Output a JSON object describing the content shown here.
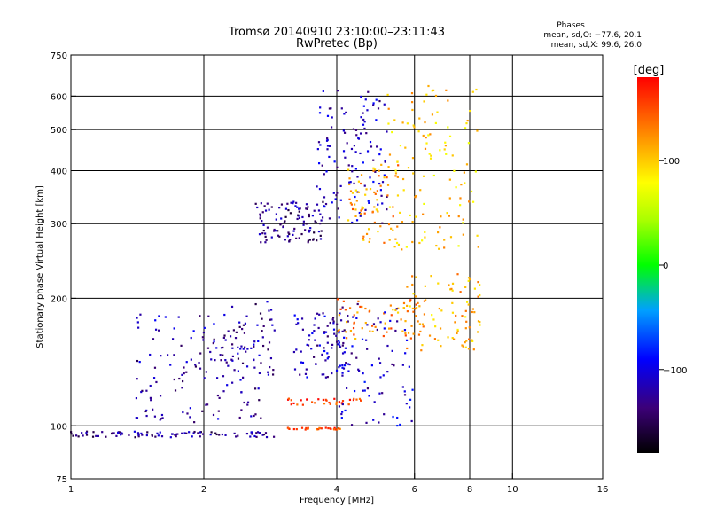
{
  "chart_data": {
    "type": "scatter",
    "title": "Tromsø 20140910 23:10:00–23:11:43",
    "subtitle": "RwPretec (Bp)",
    "phases_box": {
      "heading": "Phases",
      "line_o": "mean, sd,O: −77.6, 20.1",
      "line_x": "mean, sd,X: 99.6, 26.0"
    },
    "xlabel": "Frequency [MHz]",
    "ylabel": "Stationary phase Virtual Height [km]",
    "x_scale": "log",
    "y_scale": "log",
    "xlim": [
      1,
      16
    ],
    "ylim": [
      75,
      750
    ],
    "x_ticks": [
      1,
      2,
      4,
      6,
      8,
      10,
      16
    ],
    "x_tick_labels": [
      "1",
      "2",
      "4",
      "6",
      "8",
      "10",
      "16"
    ],
    "y_ticks": [
      75,
      100,
      200,
      300,
      400,
      500,
      600,
      750
    ],
    "y_tick_labels": [
      "75",
      "100",
      "200",
      "300",
      "400",
      "500",
      "600",
      "750"
    ],
    "grid_x": [
      2,
      4,
      6,
      8,
      10
    ],
    "grid_y": [
      100,
      200,
      300,
      400,
      500,
      600
    ],
    "grid": true,
    "colorbar": {
      "label": "[deg]",
      "range": [
        -180,
        180
      ],
      "ticks": [
        100,
        0,
        -100
      ],
      "tick_labels": [
        "100",
        "0",
        "−100"
      ]
    },
    "traces": [
      {
        "f0": 1.0,
        "f1": 2.9,
        "h0": 94,
        "h1": 97,
        "phase": -130,
        "n": 90
      },
      {
        "f0": 3.0,
        "f1": 4.1,
        "h0": 98,
        "h1": 99,
        "phase": 150,
        "n": 30
      },
      {
        "f0": 3.1,
        "f1": 4.6,
        "h0": 112,
        "h1": 116,
        "phase": 160,
        "n": 35
      },
      {
        "f0": 1.4,
        "f1": 2.7,
        "h0": 102,
        "h1": 185,
        "phase": -120,
        "n": 150
      },
      {
        "f0": 2.3,
        "f1": 2.9,
        "h0": 130,
        "h1": 200,
        "phase": -125,
        "n": 40
      },
      {
        "f0": 3.2,
        "f1": 4.3,
        "h0": 130,
        "h1": 185,
        "phase": -115,
        "n": 90
      },
      {
        "f0": 4.0,
        "f1": 6.2,
        "h0": 160,
        "h1": 200,
        "phase": 130,
        "n": 60
      },
      {
        "f0": 5.5,
        "f1": 8.5,
        "h0": 150,
        "h1": 230,
        "phase": 110,
        "n": 90
      },
      {
        "f0": 2.6,
        "f1": 3.8,
        "h0": 270,
        "h1": 340,
        "phase": -130,
        "n": 110
      },
      {
        "f0": 3.6,
        "f1": 5.2,
        "h0": 300,
        "h1": 620,
        "phase": -115,
        "n": 120
      },
      {
        "f0": 4.2,
        "f1": 5.6,
        "h0": 270,
        "h1": 420,
        "phase": 120,
        "n": 70
      },
      {
        "f0": 5.2,
        "f1": 8.4,
        "h0": 260,
        "h1": 640,
        "phase": 100,
        "n": 120
      },
      {
        "f0": 4.0,
        "f1": 6.0,
        "h0": 100,
        "h1": 200,
        "phase": -110,
        "n": 80
      }
    ],
    "legend": "colorbar-right"
  }
}
